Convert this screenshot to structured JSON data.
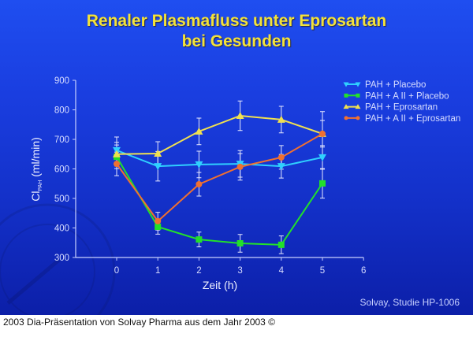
{
  "slide": {
    "title_line1": "Renaler Plasmafluss unter Eprosartan",
    "title_line2": "bei Gesunden",
    "source": "Solvay, Studie HP-1006",
    "caption": "2003 Dia-Präsentation von Solvay Pharma aus dem Jahr 2003 ©",
    "colors": {
      "background": "#1a3ee0",
      "title": "#f3e23a",
      "axis": "#c8d0ff"
    }
  },
  "chart_data": {
    "type": "line",
    "title": "Renaler Plasmafluss unter Eprosartan bei Gesunden",
    "xlabel": "Zeit (h)",
    "ylabel": "Cl_PAH (ml/min)",
    "ylabel_main": "Cl",
    "ylabel_sub": "PAH",
    "ylabel_unit": "(ml/min)",
    "xlim": [
      0,
      6
    ],
    "ylim": [
      300,
      900
    ],
    "x_ticks": [
      0,
      1,
      2,
      3,
      4,
      5,
      6
    ],
    "y_ticks": [
      300,
      400,
      500,
      600,
      700,
      800,
      900
    ],
    "grid": false,
    "legend_position": "top-right",
    "x": [
      0,
      1,
      2,
      3,
      4,
      5
    ],
    "series": [
      {
        "name": "PAH + Placebo",
        "color": "#2fd0ff",
        "marker": "triangle-down",
        "values": [
          663,
          609,
          615,
          617,
          609,
          639
        ],
        "error": [
          45,
          50,
          45,
          45,
          40,
          40
        ]
      },
      {
        "name": "PAH + A II + Placebo",
        "color": "#22e02a",
        "marker": "square",
        "values": [
          641,
          404,
          361,
          348,
          343,
          551
        ],
        "error": [
          40,
          25,
          25,
          30,
          30,
          50
        ]
      },
      {
        "name": "PAH + Eprosartan",
        "color": "#f0e050",
        "marker": "triangle-up",
        "values": [
          650,
          652,
          727,
          780,
          767,
          719
        ],
        "error": [
          40,
          40,
          45,
          50,
          45,
          75
        ]
      },
      {
        "name": "PAH + A II + Eprosartan",
        "color": "#f07030",
        "marker": "circle",
        "values": [
          617,
          423,
          548,
          607,
          639,
          719
        ],
        "error": [
          40,
          30,
          40,
          45,
          40,
          45
        ]
      }
    ]
  }
}
